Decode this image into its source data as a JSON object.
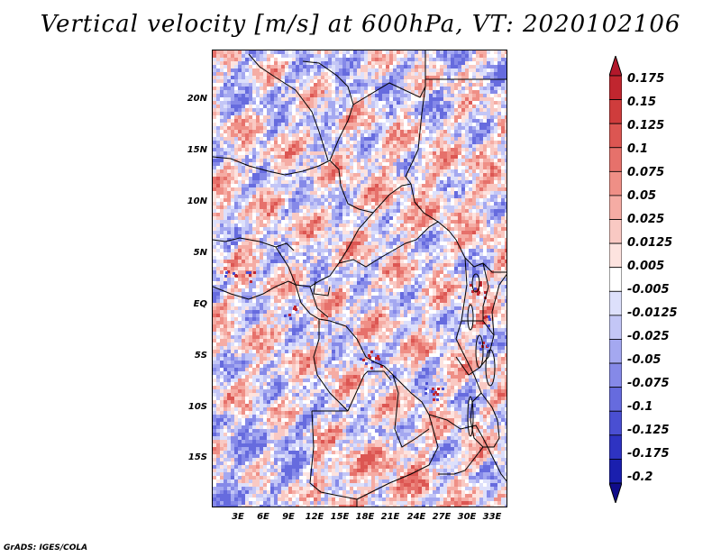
{
  "title": "Vertical velocity [m/s] at 600hPa, VT: 2020102106",
  "footer": "GrADS: IGES/COLA",
  "lat_labels": [
    "20N",
    "15N",
    "10N",
    "5N",
    "EQ",
    "5S",
    "10S",
    "15S"
  ],
  "lon_labels": [
    "3E",
    "6E",
    "9E",
    "12E",
    "15E",
    "18E",
    "21E",
    "24E",
    "27E",
    "30E",
    "33E"
  ],
  "colorbar": {
    "labels": [
      "0.175",
      "0.15",
      "0.125",
      "0.1",
      "0.075",
      "0.05",
      "0.025",
      "0.0125",
      "0.005",
      "-0.005",
      "-0.0125",
      "-0.025",
      "-0.05",
      "-0.075",
      "-0.1",
      "-0.125",
      "-0.175",
      "-0.2"
    ],
    "colors": [
      "#b2182b",
      "#c0262f",
      "#cf3c3c",
      "#dc5652",
      "#e6716b",
      "#ef8f86",
      "#f5aca4",
      "#f9c9c3",
      "#fde3df",
      "#ffffff",
      "#dde0fb",
      "#c3c6f6",
      "#a4a8f0",
      "#8589e8",
      "#666bde",
      "#4a4fd2",
      "#2e33c2",
      "#1a1fae",
      "#100c8a"
    ]
  }
}
